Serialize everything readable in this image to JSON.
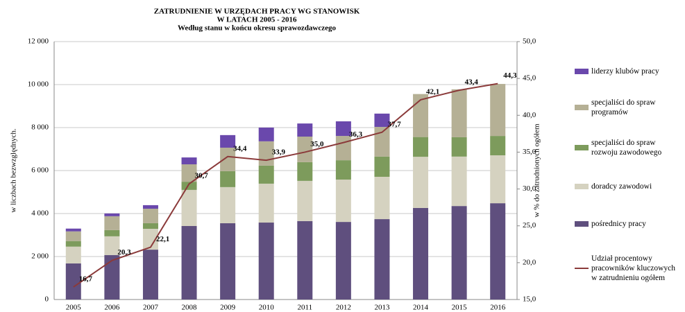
{
  "chart_data": {
    "type": "stacked-bar-line",
    "title": "ZATRUDNIENIE W URZĘDACH PRACY WG STANOWISK",
    "subtitle": "W LATACH 2005 - 2016",
    "subtitle2": "Według stanu w końcu okresu sprawozdawczego",
    "ylabel": "w liczbach bezwzględnych.",
    "y2label": "w % do zatrudnionych ogółem",
    "categories": [
      "2005",
      "2006",
      "2007",
      "2008",
      "2009",
      "2010",
      "2011",
      "2012",
      "2013",
      "2014",
      "2015",
      "2016"
    ],
    "series": [
      {
        "name": "pośrednicy pracy",
        "color": "#5f4f7e",
        "values": [
          1680,
          2070,
          2320,
          3420,
          3550,
          3580,
          3650,
          3610,
          3740,
          4260,
          4350,
          4480
        ]
      },
      {
        "name": "doradcy zawodowi",
        "color": "#d5d2c0",
        "values": [
          780,
          870,
          970,
          1680,
          1680,
          1810,
          1870,
          1970,
          1970,
          2380,
          2300,
          2230
        ]
      },
      {
        "name": "specjaliści do spraw rozwoju zawodowego",
        "color": "#7d9b5c",
        "values": [
          260,
          290,
          260,
          380,
          740,
          840,
          870,
          900,
          940,
          920,
          900,
          900
        ]
      },
      {
        "name": "specjaliści do spraw programów",
        "color": "#b5b095",
        "values": [
          450,
          645,
          675,
          810,
          1095,
          1130,
          1190,
          1130,
          1380,
          2000,
          2230,
          2420
        ]
      },
      {
        "name": "liderzy klubów pracy",
        "color": "#6a48ac",
        "values": [
          130,
          130,
          165,
          320,
          585,
          640,
          610,
          680,
          620,
          0,
          0,
          0
        ]
      },
      {
        "name": "Udział procentowy pracowników kluczowych w zatrudnieniu ogółem",
        "color": "#8b3a3a",
        "axis": "y2",
        "type": "line",
        "values": [
          16.7,
          20.3,
          22.1,
          30.7,
          34.4,
          33.9,
          35.0,
          36.3,
          37.7,
          42.1,
          43.4,
          44.3
        ],
        "value_labels": [
          "16,7",
          "20,3",
          "22,1",
          "30,7",
          "34,4",
          "33,9",
          "35,0",
          "36,3",
          "37,7",
          "42,1",
          "43,4",
          "44,3"
        ]
      }
    ],
    "ylim": [
      0,
      12000
    ],
    "yticks": [
      0,
      {
        "value": 2000,
        "label": "2 000"
      },
      {
        "value": 4000,
        "label": "4 000"
      },
      {
        "value": 6000,
        "label": "6 000"
      },
      {
        "value": 8000,
        "label": "8 000"
      },
      {
        "value": 10000,
        "label": "10 000"
      },
      {
        "value": 12000,
        "label": "12 000"
      }
    ],
    "y2lim": [
      15,
      50
    ],
    "y2ticks": [
      {
        "value": 15,
        "label": "15,0"
      },
      {
        "value": 20,
        "label": "20,0"
      },
      {
        "value": 25,
        "label": "25,0"
      },
      {
        "value": 30,
        "label": "30,0"
      },
      {
        "value": 35,
        "label": "35,0"
      },
      {
        "value": 40,
        "label": "40,0"
      },
      {
        "value": 45,
        "label": "45,0"
      },
      {
        "value": 50,
        "label": "50,0"
      }
    ],
    "grid": true
  }
}
